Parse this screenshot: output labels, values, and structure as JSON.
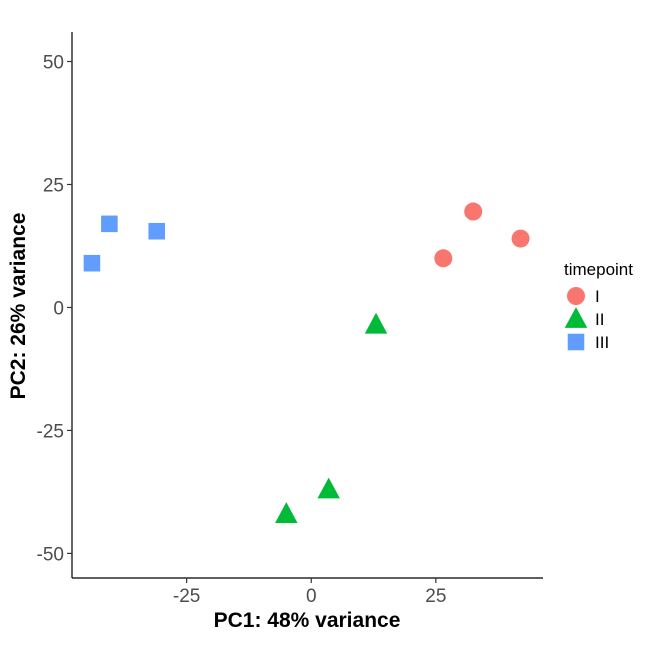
{
  "chart_data": {
    "type": "scatter",
    "xlabel": "PC1: 48% variance",
    "ylabel": "PC2: 26% variance",
    "xlim": [
      -48,
      46.5
    ],
    "ylim": [
      -55,
      56
    ],
    "xticks": [
      -25,
      0,
      25
    ],
    "yticks": [
      -50,
      -25,
      0,
      25,
      50
    ],
    "grid": false,
    "legend": {
      "title": "timepoint",
      "placement": "right"
    },
    "series": [
      {
        "name": "I",
        "shape": "circle",
        "color": "#F8766D",
        "points": [
          {
            "x": 26.5,
            "y": 10
          },
          {
            "x": 32.5,
            "y": 19.5
          },
          {
            "x": 42,
            "y": 14
          }
        ]
      },
      {
        "name": "II",
        "shape": "triangle",
        "color": "#00BA38",
        "points": [
          {
            "x": 13,
            "y": -3.5
          },
          {
            "x": 3.5,
            "y": -37
          },
          {
            "x": -5,
            "y": -42
          }
        ]
      },
      {
        "name": "III",
        "shape": "square",
        "color": "#619CFF",
        "points": [
          {
            "x": -44,
            "y": 9
          },
          {
            "x": -40.5,
            "y": 17
          },
          {
            "x": -31,
            "y": 15.5
          }
        ]
      }
    ]
  }
}
